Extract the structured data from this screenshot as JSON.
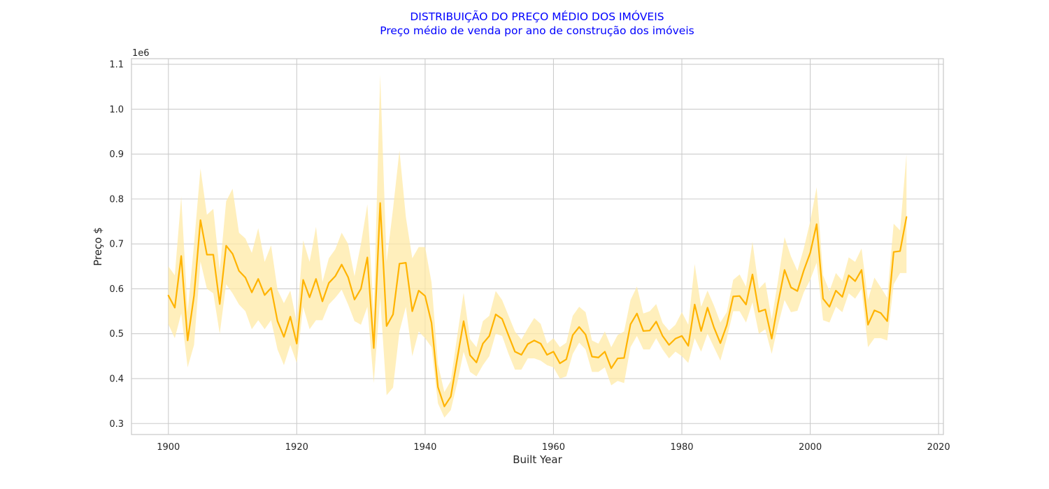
{
  "chart_data": {
    "type": "line",
    "title": "DISTRIBUIÇÃO DO PREÇO MÉDIO DOS IMÓVEIS",
    "subtitle": "Preço médio de venda por ano de construção dos imóveis",
    "xlabel": "Built Year",
    "ylabel": "Preço $",
    "y_scale_label": "1e6",
    "xlim": [
      1894.25,
      2020.75
    ],
    "ylim": [
      0.2755,
      1.1125
    ],
    "x_ticks": [
      1900,
      1920,
      1940,
      1960,
      1980,
      2000,
      2020
    ],
    "x_tick_labels": [
      "1900",
      "1920",
      "1940",
      "1960",
      "1980",
      "2000",
      "2020"
    ],
    "y_ticks": [
      0.3,
      0.4,
      0.5,
      0.6,
      0.7,
      0.8,
      0.9,
      1.0,
      1.1
    ],
    "y_tick_labels": [
      "0.3",
      "0.4",
      "0.5",
      "0.6",
      "0.7",
      "0.8",
      "0.9",
      "1.0",
      "1.1"
    ],
    "grid": true,
    "colors": {
      "line": "#FFB300",
      "band": "#FFE9A6",
      "title": "#0000FF",
      "grid": "#CCCCCC",
      "spine": "#CCCCCC"
    },
    "series": [
      {
        "x": [
          1900,
          1901,
          1902,
          1903,
          1904,
          1905,
          1906,
          1907,
          1908,
          1909,
          1910,
          1911,
          1912,
          1913,
          1914,
          1915,
          1916,
          1917,
          1918,
          1919,
          1920,
          1921,
          1922,
          1923,
          1924,
          1925,
          1926,
          1927,
          1928,
          1929,
          1930,
          1931,
          1932,
          1933,
          1934,
          1935,
          1936,
          1937,
          1938,
          1939,
          1940,
          1941,
          1942,
          1943,
          1944,
          1945,
          1946,
          1947,
          1948,
          1949,
          1950,
          1951,
          1952,
          1953,
          1954,
          1955,
          1956,
          1957,
          1958,
          1959,
          1960,
          1961,
          1962,
          1963,
          1964,
          1965,
          1966,
          1967,
          1968,
          1969,
          1970,
          1971,
          1972,
          1973,
          1974,
          1975,
          1976,
          1977,
          1978,
          1979,
          1980,
          1981,
          1982,
          1983,
          1984,
          1985,
          1986,
          1987,
          1988,
          1989,
          1990,
          1991,
          1992,
          1993,
          1994,
          1995,
          1996,
          1997,
          1998,
          1999,
          2000,
          2001,
          2002,
          2003,
          2004,
          2005,
          2006,
          2007,
          2008,
          2009,
          2010,
          2011,
          2012,
          2013,
          2014,
          2015
        ],
        "y": [
          0.585,
          0.558,
          0.673,
          0.485,
          0.585,
          0.753,
          0.676,
          0.676,
          0.566,
          0.696,
          0.678,
          0.64,
          0.625,
          0.592,
          0.622,
          0.586,
          0.602,
          0.528,
          0.493,
          0.538,
          0.478,
          0.62,
          0.581,
          0.622,
          0.572,
          0.613,
          0.628,
          0.654,
          0.626,
          0.576,
          0.6,
          0.67,
          0.468,
          0.791,
          0.517,
          0.543,
          0.656,
          0.658,
          0.55,
          0.596,
          0.584,
          0.524,
          0.381,
          0.338,
          0.36,
          0.444,
          0.528,
          0.452,
          0.436,
          0.478,
          0.495,
          0.543,
          0.533,
          0.496,
          0.46,
          0.453,
          0.477,
          0.485,
          0.478,
          0.453,
          0.46,
          0.434,
          0.443,
          0.497,
          0.515,
          0.498,
          0.449,
          0.447,
          0.46,
          0.423,
          0.445,
          0.446,
          0.521,
          0.545,
          0.506,
          0.507,
          0.527,
          0.495,
          0.475,
          0.489,
          0.495,
          0.473,
          0.565,
          0.506,
          0.558,
          0.514,
          0.479,
          0.519,
          0.583,
          0.584,
          0.565,
          0.632,
          0.549,
          0.554,
          0.489,
          0.569,
          0.642,
          0.603,
          0.595,
          0.641,
          0.68,
          0.744,
          0.578,
          0.56,
          0.596,
          0.582,
          0.63,
          0.617,
          0.642,
          0.52,
          0.552,
          0.546,
          0.528,
          0.682,
          0.684,
          0.76
        ],
        "ci_low": [
          0.521,
          0.49,
          0.545,
          0.425,
          0.475,
          0.661,
          0.6,
          0.59,
          0.5,
          0.61,
          0.59,
          0.565,
          0.55,
          0.51,
          0.53,
          0.51,
          0.53,
          0.465,
          0.43,
          0.475,
          0.435,
          0.56,
          0.51,
          0.53,
          0.53,
          0.565,
          0.58,
          0.598,
          0.565,
          0.528,
          0.52,
          0.56,
          0.39,
          0.58,
          0.363,
          0.38,
          0.505,
          0.56,
          0.45,
          0.505,
          0.49,
          0.47,
          0.345,
          0.313,
          0.33,
          0.39,
          0.46,
          0.415,
          0.405,
          0.43,
          0.45,
          0.5,
          0.495,
          0.455,
          0.42,
          0.42,
          0.445,
          0.445,
          0.44,
          0.43,
          0.425,
          0.4,
          0.405,
          0.455,
          0.48,
          0.465,
          0.415,
          0.415,
          0.425,
          0.385,
          0.395,
          0.39,
          0.47,
          0.495,
          0.465,
          0.465,
          0.49,
          0.465,
          0.445,
          0.46,
          0.45,
          0.435,
          0.49,
          0.46,
          0.5,
          0.47,
          0.44,
          0.49,
          0.55,
          0.55,
          0.525,
          0.57,
          0.5,
          0.51,
          0.455,
          0.52,
          0.575,
          0.548,
          0.551,
          0.592,
          0.62,
          0.658,
          0.53,
          0.525,
          0.56,
          0.548,
          0.59,
          0.578,
          0.6,
          0.47,
          0.49,
          0.49,
          0.485,
          0.61,
          0.635,
          0.635
        ],
        "ci_high": [
          0.65,
          0.63,
          0.805,
          0.548,
          0.7,
          0.868,
          0.765,
          0.778,
          0.64,
          0.795,
          0.823,
          0.725,
          0.712,
          0.68,
          0.735,
          0.66,
          0.697,
          0.598,
          0.568,
          0.596,
          0.525,
          0.708,
          0.66,
          0.738,
          0.615,
          0.668,
          0.688,
          0.725,
          0.7,
          0.628,
          0.7,
          0.788,
          0.545,
          1.077,
          0.66,
          0.778,
          0.908,
          0.76,
          0.668,
          0.693,
          0.693,
          0.614,
          0.432,
          0.37,
          0.395,
          0.495,
          0.591,
          0.488,
          0.47,
          0.528,
          0.54,
          0.595,
          0.575,
          0.54,
          0.505,
          0.487,
          0.512,
          0.535,
          0.522,
          0.478,
          0.49,
          0.47,
          0.48,
          0.54,
          0.56,
          0.548,
          0.485,
          0.478,
          0.505,
          0.47,
          0.497,
          0.505,
          0.575,
          0.605,
          0.545,
          0.55,
          0.566,
          0.524,
          0.507,
          0.52,
          0.548,
          0.52,
          0.655,
          0.56,
          0.596,
          0.563,
          0.525,
          0.548,
          0.62,
          0.632,
          0.605,
          0.705,
          0.6,
          0.615,
          0.532,
          0.62,
          0.715,
          0.672,
          0.64,
          0.69,
          0.75,
          0.826,
          0.63,
          0.595,
          0.635,
          0.618,
          0.67,
          0.66,
          0.69,
          0.575,
          0.625,
          0.603,
          0.58,
          0.745,
          0.73,
          0.9
        ]
      }
    ]
  }
}
